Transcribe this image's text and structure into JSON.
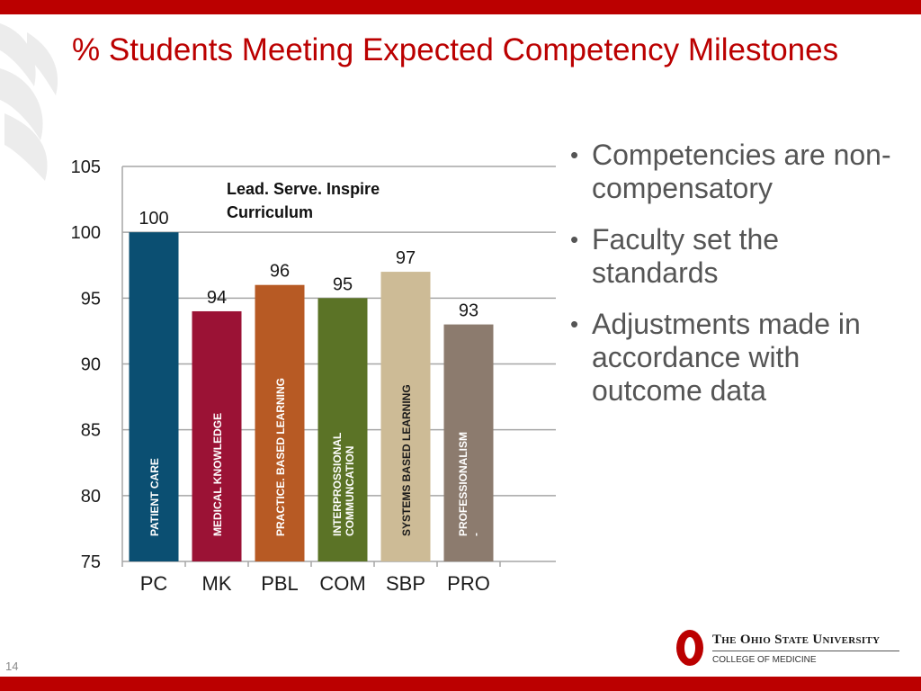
{
  "slide": {
    "title": "% Students Meeting Expected Competency Milestones",
    "page_number": "14"
  },
  "bullets": [
    " Competencies are non-compensatory",
    "Faculty set the standards",
    " Adjustments made in accordance with outcome data"
  ],
  "logo": {
    "university": "The Ohio State University",
    "college": "COLLEGE OF MEDICINE"
  },
  "colors": {
    "brand_red": "#bb0000",
    "grid": "#a6a6a6"
  },
  "chart_data": {
    "type": "bar",
    "title": "",
    "annotation": "Lead. Serve. Inspire Curriculum",
    "categories": [
      "PC",
      "MK",
      "PBL",
      "COM",
      "SBP",
      "PRO"
    ],
    "values": [
      100,
      94,
      96,
      95,
      97,
      93
    ],
    "bar_labels": [
      [
        "PATIENT CARE"
      ],
      [
        "MEDICAL  KNOWLEDGE"
      ],
      [
        "PRACTICE. BASED  LEARNING"
      ],
      [
        "INTERPROSSIONAL",
        "COMMUNCATION"
      ],
      [
        "SYSTEMS BASED LEARNING"
      ],
      [
        "PROFESSIONALISM",
        "-"
      ]
    ],
    "bar_colors": [
      "#0b4f72",
      "#9b1235",
      "#b75a24",
      "#5b7326",
      "#cdbb96",
      "#8c7b6e"
    ],
    "bar_label_colors": [
      "#ffffff",
      "#ffffff",
      "#ffffff",
      "#ffffff",
      "#1a1a1a",
      "#ffffff"
    ],
    "ylim": [
      75,
      105
    ],
    "yticks": [
      75,
      80,
      85,
      90,
      95,
      100,
      105
    ],
    "xlabel": "",
    "ylabel": "",
    "grid": true,
    "legend": "none"
  }
}
